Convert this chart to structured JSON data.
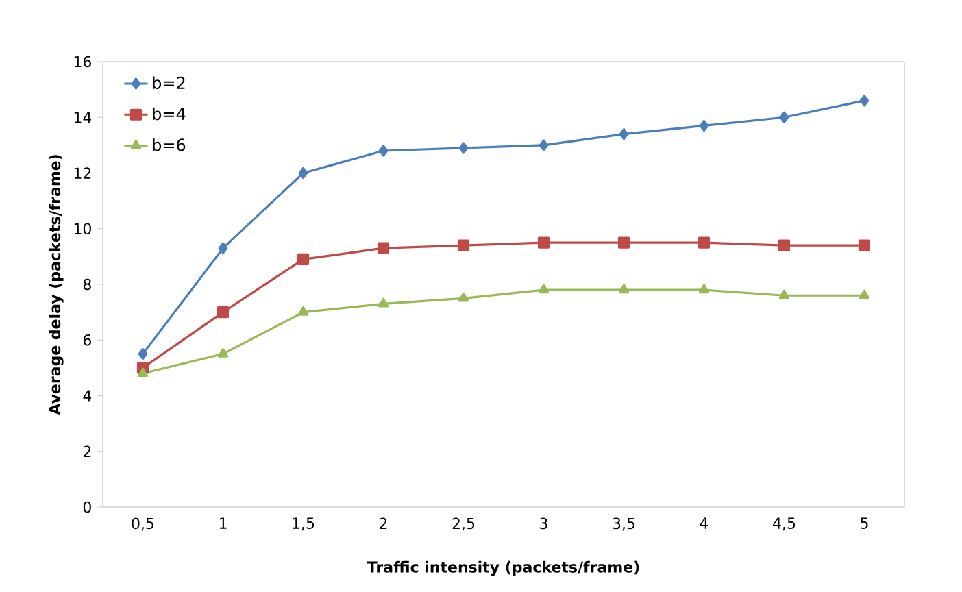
{
  "chart_data": {
    "type": "line",
    "xlabel": "Traffic intensity (packets/frame)",
    "ylabel": "Average delay (packets/frame)",
    "categories": [
      "0,5",
      "1",
      "1,5",
      "2",
      "2,5",
      "3",
      "3,5",
      "4",
      "4,5",
      "5"
    ],
    "ylim": [
      0,
      16
    ],
    "yticks": [
      0,
      2,
      4,
      6,
      8,
      10,
      12,
      14,
      16
    ],
    "grid": false,
    "legend": "top left",
    "series": [
      {
        "name": "b=2",
        "color": "#4a7ebb",
        "marker": "diamond",
        "values": [
          5.5,
          9.3,
          12.0,
          12.8,
          12.9,
          13.0,
          13.4,
          13.7,
          14.0,
          14.6
        ]
      },
      {
        "name": "b=4",
        "color": "#be4b48",
        "marker": "square",
        "values": [
          5.0,
          7.0,
          8.9,
          9.3,
          9.4,
          9.5,
          9.5,
          9.5,
          9.4,
          9.4
        ]
      },
      {
        "name": "b=6",
        "color": "#98b954",
        "marker": "triangle",
        "values": [
          4.8,
          5.5,
          7.0,
          7.3,
          7.5,
          7.8,
          7.8,
          7.8,
          7.6,
          7.6
        ]
      }
    ]
  }
}
